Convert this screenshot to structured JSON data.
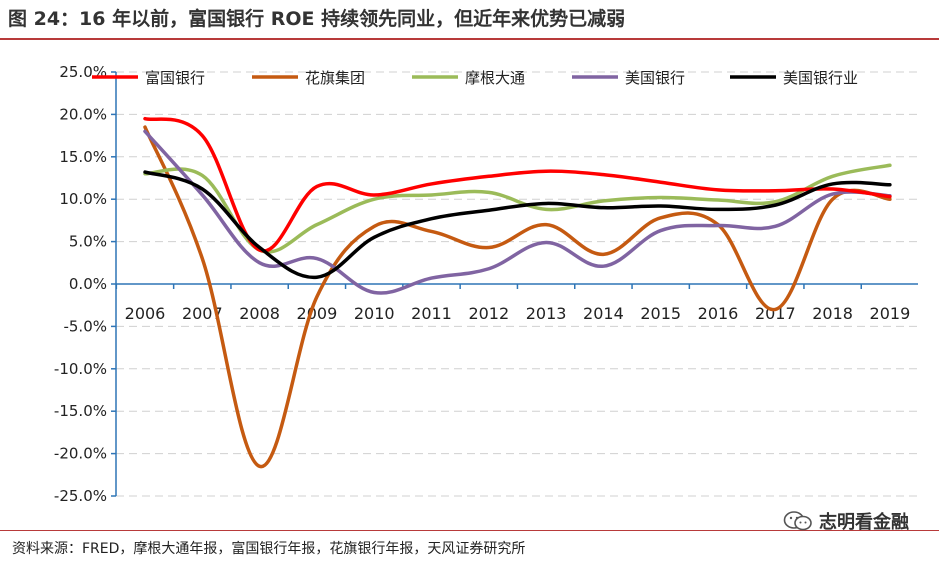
{
  "title": "图 24：16 年以前，富国银行 ROE 持续领先同业，但近年来优势已减弱",
  "source": "资料来源：FRED，摩根大通年报，富国银行年报，花旗银行年报，天风证券研究所",
  "watermark": {
    "text": "志明看金融",
    "icon": "wechat-icon"
  },
  "chart_data": {
    "type": "line",
    "x": [
      "2006",
      "2007",
      "2008",
      "2009",
      "2010",
      "2011",
      "2012",
      "2013",
      "2014",
      "2015",
      "2016",
      "2017",
      "2018",
      "2019"
    ],
    "ylim": [
      -25,
      25
    ],
    "yticks": [
      "25.0%",
      "20.0%",
      "15.0%",
      "10.0%",
      "5.0%",
      "0.0%",
      "-5.0%",
      "-10.0%",
      "-15.0%",
      "-20.0%",
      "-25.0%"
    ],
    "ytick_values": [
      25,
      20,
      15,
      10,
      5,
      0,
      -5,
      -10,
      -15,
      -20,
      -25
    ],
    "grid": "horizontal-dashed",
    "legend_position": "top",
    "series": [
      {
        "name": "富国银行",
        "color": "#ff0000",
        "values": [
          19.5,
          17.5,
          4.0,
          11.5,
          10.5,
          11.8,
          12.7,
          13.3,
          12.9,
          12.0,
          11.1,
          11.0,
          11.2,
          10.3
        ]
      },
      {
        "name": "花旗集团",
        "color": "#c55a11",
        "values": [
          18.5,
          3.0,
          -21.5,
          -1.5,
          6.8,
          6.2,
          4.3,
          7.0,
          3.5,
          7.8,
          7.0,
          -3.0,
          10.0,
          10.0
        ]
      },
      {
        "name": "摩根大通",
        "color": "#9bbb59",
        "values": [
          13.0,
          12.8,
          4.0,
          7.0,
          10.0,
          10.5,
          10.8,
          8.8,
          9.8,
          10.2,
          9.9,
          9.7,
          12.7,
          14.0
        ]
      },
      {
        "name": "美国银行",
        "color": "#8064a2",
        "values": [
          18.0,
          10.5,
          2.5,
          3.0,
          -1.0,
          0.7,
          1.8,
          4.9,
          2.1,
          6.3,
          6.9,
          6.8,
          10.6,
          10.4
        ]
      },
      {
        "name": "美国银行业",
        "color": "#000000",
        "values": [
          13.2,
          11.2,
          4.3,
          0.8,
          5.5,
          7.7,
          8.7,
          9.5,
          9.0,
          9.2,
          8.8,
          9.3,
          11.8,
          11.7
        ]
      }
    ]
  }
}
